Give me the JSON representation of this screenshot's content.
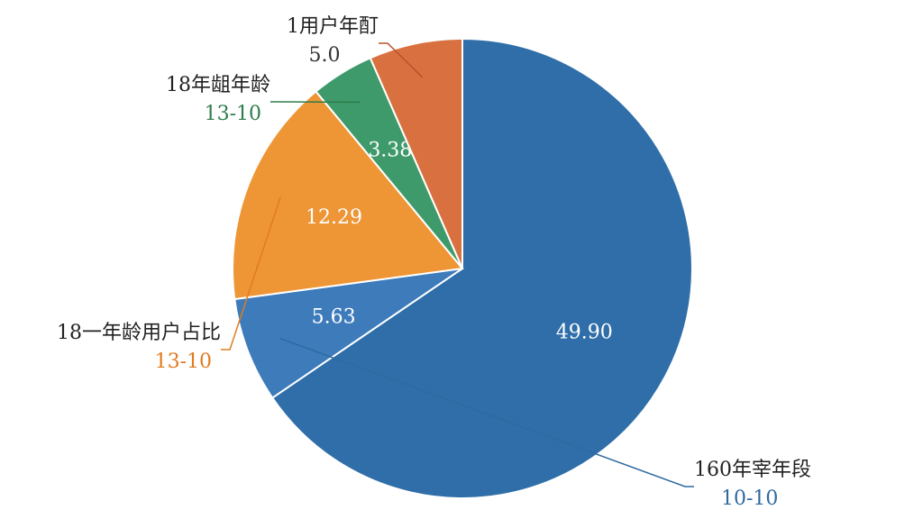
{
  "chart_data": {
    "type": "pie",
    "categories": [
      null,
      "160年宰年段",
      "18一年龄用户占比",
      "18年龃年龄",
      "1用户年酊"
    ],
    "sub_labels": [
      null,
      "10-10",
      "13-10",
      "13-10",
      null
    ],
    "values": [
      49.9,
      5.63,
      12.29,
      3.38,
      5.0
    ],
    "value_labels": [
      "49.90",
      "5.63",
      "12.29",
      "3.38",
      "5.0"
    ],
    "colors": [
      "#2f6ea8",
      "#3d7bbb",
      "#ee9535",
      "#3f9a6b",
      "#d9703f"
    ],
    "label_colors": [
      null,
      "#2f6aa0",
      "#e07b20",
      "#2e7d4a",
      "#c0502c"
    ]
  }
}
